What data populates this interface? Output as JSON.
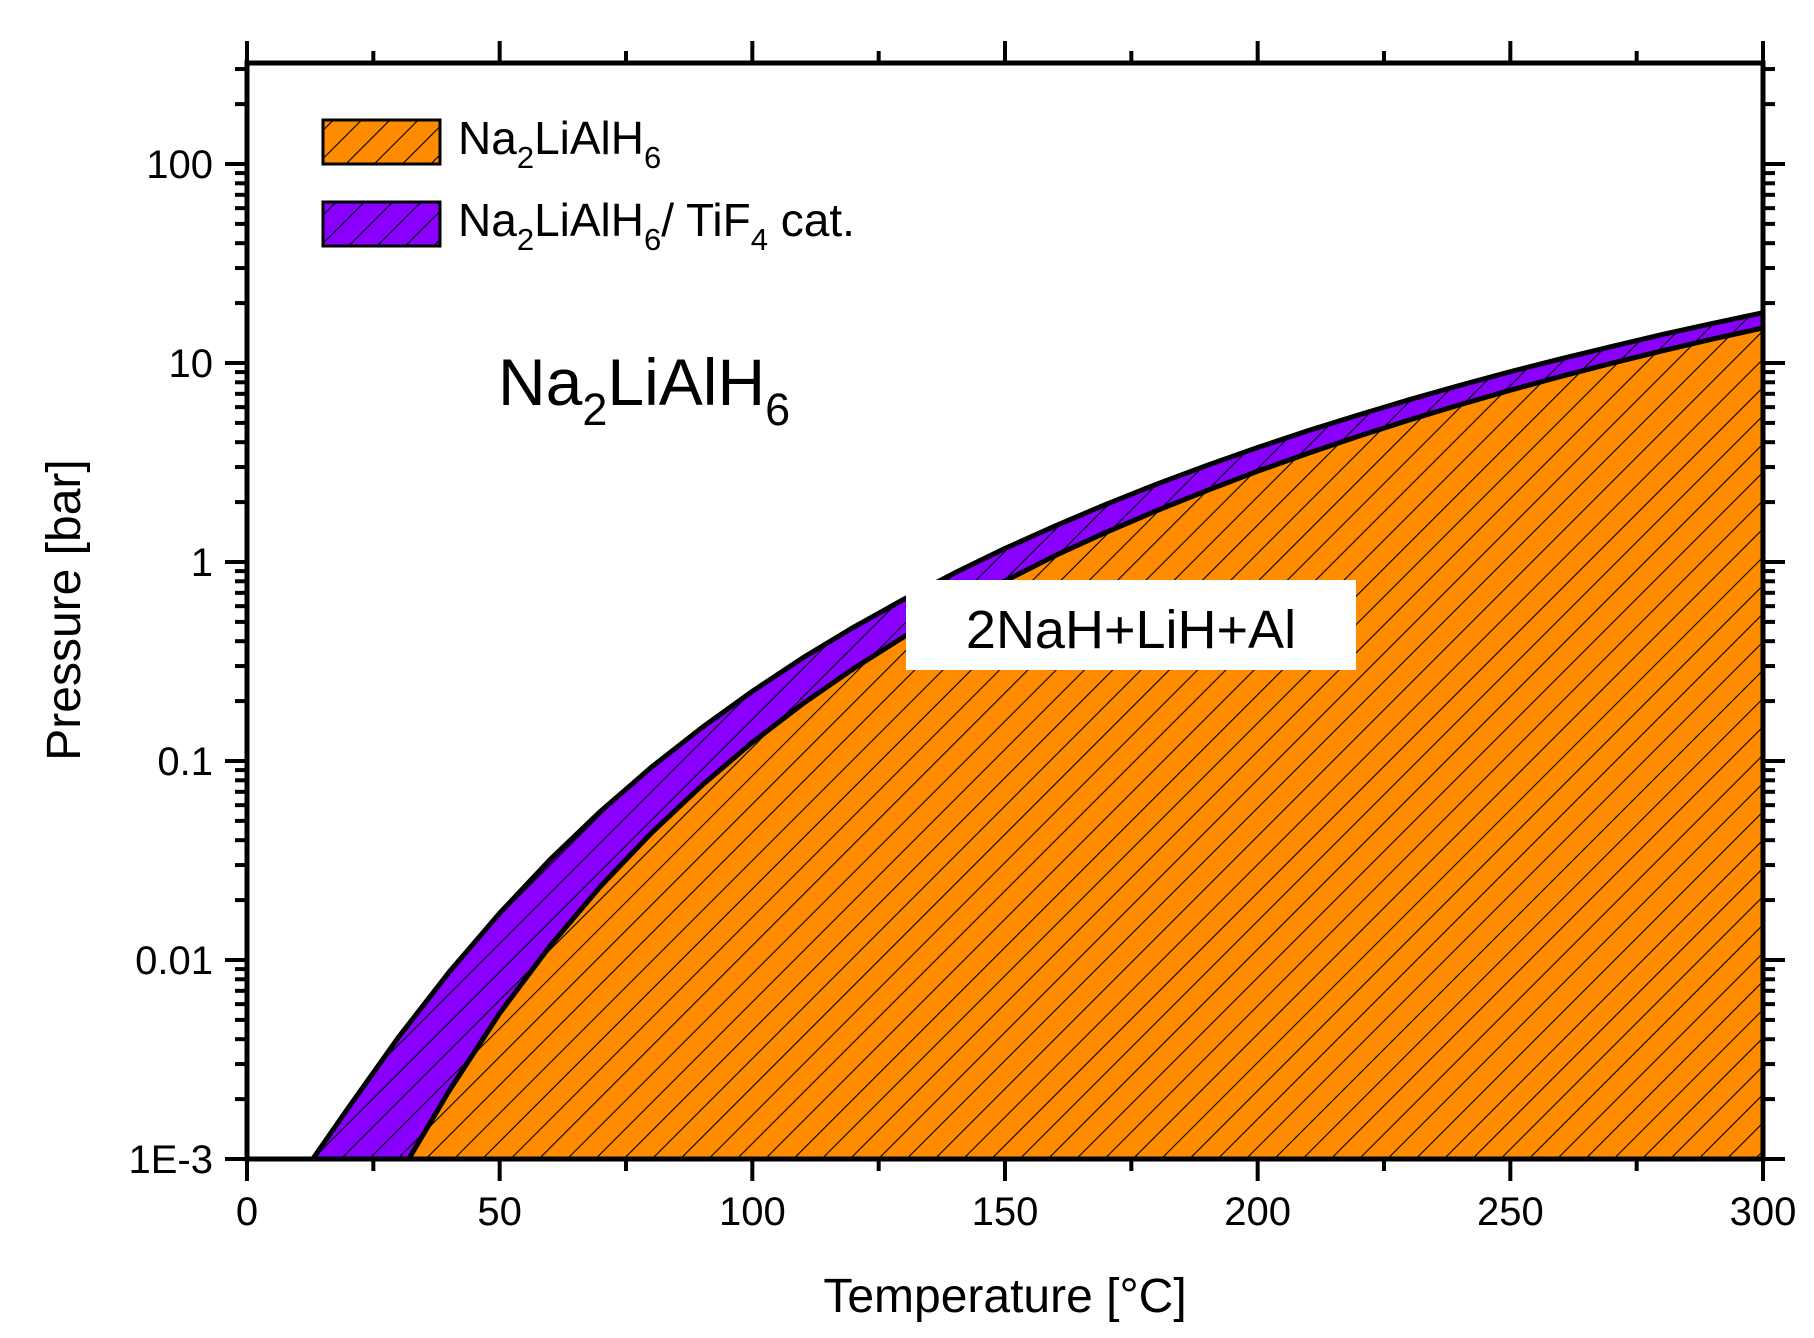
{
  "chart_data": {
    "type": "area",
    "xlabel": "Temperature [°C]",
    "ylabel": "Pressure [bar]",
    "xlim": [
      0,
      300
    ],
    "ylim": [
      0.001,
      300
    ],
    "y_scale": "log",
    "x_ticks": [
      0,
      50,
      100,
      150,
      200,
      250,
      300
    ],
    "x_tick_labels": [
      "0",
      "50",
      "100",
      "150",
      "200",
      "250",
      "300"
    ],
    "y_ticks": [
      0.001,
      0.01,
      0.1,
      1,
      10,
      100
    ],
    "y_tick_labels": [
      "1E-3",
      "0.01",
      "0.1",
      "1",
      "10",
      "100"
    ],
    "legend_position": "top-left",
    "series": [
      {
        "name_parts": [
          "Na",
          "2",
          "LiAlH",
          "6",
          ""
        ],
        "fill": "#FF8C00",
        "hatch": "diagonal",
        "x": [
          32,
          40,
          50,
          60,
          70,
          80,
          90,
          100,
          110,
          120,
          130,
          140,
          150,
          160,
          170,
          180,
          190,
          200,
          210,
          220,
          230,
          240,
          250,
          260,
          270,
          280,
          290,
          300
        ],
        "y": [
          0.001,
          0.0022,
          0.0054,
          0.0118,
          0.0235,
          0.0434,
          0.0753,
          0.124,
          0.194,
          0.291,
          0.421,
          0.589,
          0.803,
          1.08,
          1.41,
          1.81,
          2.29,
          2.86,
          3.52,
          4.29,
          5.17,
          6.17,
          7.3,
          8.56,
          9.96,
          11.5,
          13.2,
          15.0
        ],
        "y_note": "values in bar"
      },
      {
        "name_parts": [
          "Na",
          "2",
          "LiAlH",
          "6",
          "/ TiF",
          "4",
          " cat."
        ],
        "fill": "#8A00FF",
        "hatch": "diagonal",
        "x": [
          13,
          20,
          30,
          40,
          50,
          60,
          70,
          80,
          90,
          100,
          110,
          120,
          130,
          140,
          150,
          160,
          170,
          180,
          190,
          200,
          210,
          220,
          230,
          240,
          250,
          260,
          270,
          280,
          290,
          300
        ],
        "y": [
          0.001,
          0.0018,
          0.0041,
          0.0087,
          0.0172,
          0.032,
          0.056,
          0.093,
          0.147,
          0.224,
          0.33,
          0.47,
          0.65,
          0.88,
          1.17,
          1.52,
          1.95,
          2.46,
          3.06,
          3.76,
          4.57,
          5.49,
          6.54,
          7.72,
          9.04,
          10.5,
          12.1,
          13.9,
          15.8,
          17.9
        ]
      }
    ],
    "annotations": [
      {
        "parts": [
          "Na",
          "2",
          "LiAlH",
          "6"
        ],
        "region": "upper-left"
      },
      {
        "text": "2NaH+LiH+Al",
        "region": "lower-right"
      }
    ]
  }
}
